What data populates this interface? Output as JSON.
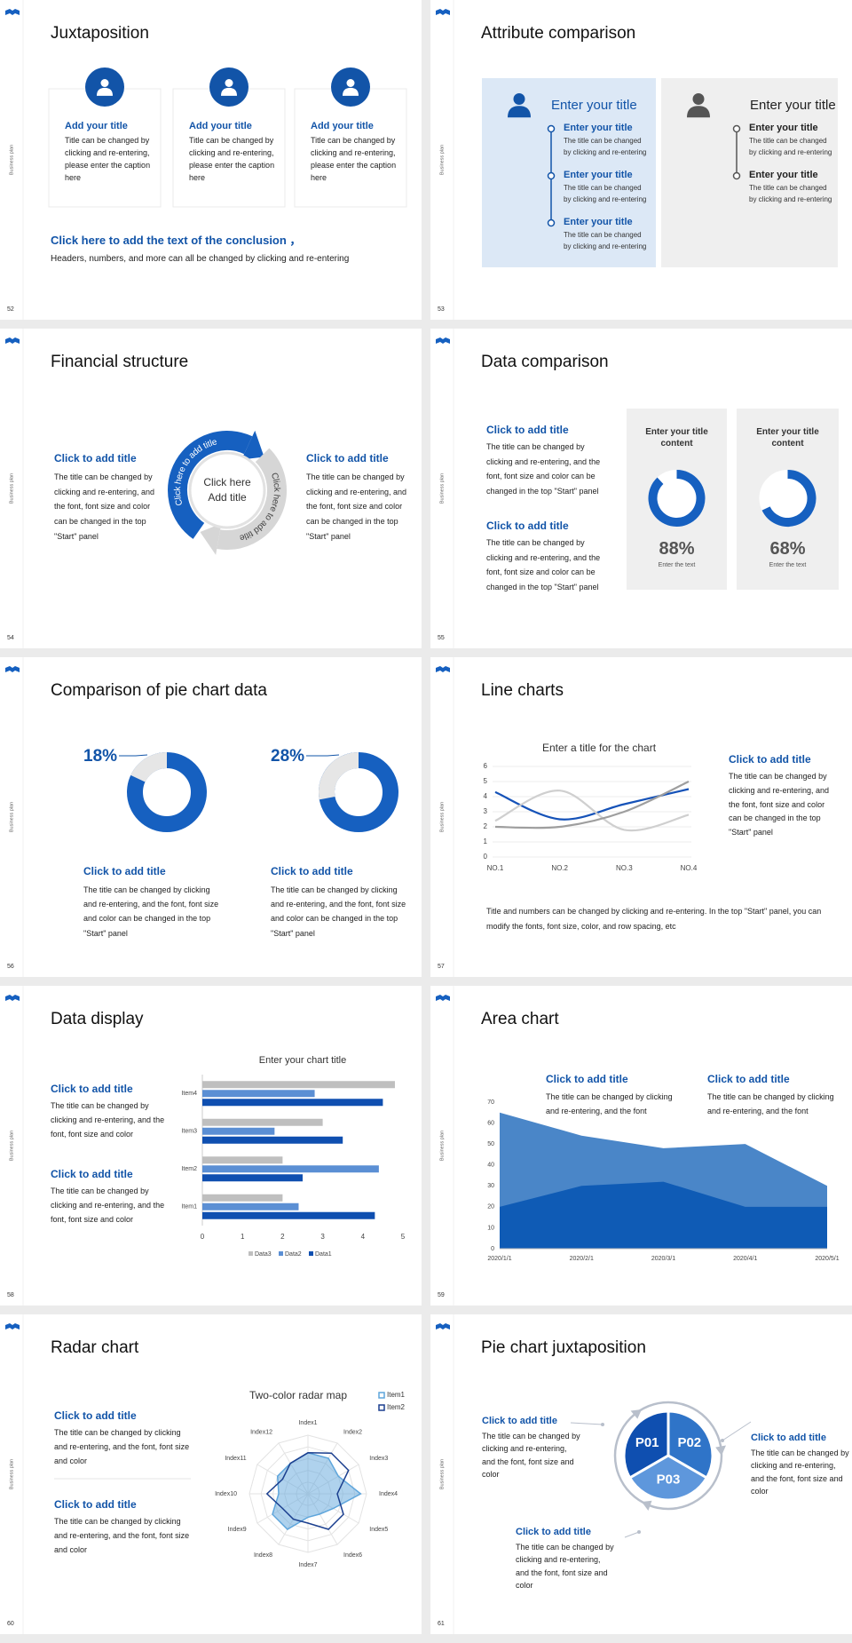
{
  "side_label": "Business plan",
  "slides": [
    {
      "number": "52",
      "title": "Juxtaposition",
      "cards": [
        {
          "title": "Add your title",
          "text": "Title can be changed by clicking and re-entering, please enter the caption here"
        },
        {
          "title": "Add your title",
          "text": "Title can be changed by clicking and re-entering, please enter the caption here"
        },
        {
          "title": "Add your title",
          "text": "Title can be changed by clicking and re-entering, please enter the caption here"
        }
      ],
      "conclusion": {
        "title": "Click here to add the text of the conclusion ，",
        "text": "Headers, numbers, and more can all be changed by clicking and re-entering"
      }
    },
    {
      "number": "53",
      "title": "Attribute comparison",
      "panels": [
        {
          "title": "Enter your title",
          "items": [
            {
              "title": "Enter your title",
              "text": "The title can be changed by clicking and re-entering"
            },
            {
              "title": "Enter your title",
              "text": "The title can be changed by clicking and re-entering"
            },
            {
              "title": "Enter your title",
              "text": "The title can be changed by clicking and re-entering"
            }
          ]
        },
        {
          "title": "Enter your title",
          "items": [
            {
              "title": "Enter your title",
              "text": "The title can be changed by clicking and re-entering"
            },
            {
              "title": "Enter your title",
              "text": "The title can be changed by clicking and re-entering"
            }
          ]
        }
      ]
    },
    {
      "number": "54",
      "title": "Financial structure",
      "blocks": [
        {
          "title": "Click to add title",
          "text": "The title can be changed by clicking and re-entering, and the font, font size and color can be changed in the top \"Start\" panel"
        },
        {
          "title": "Click to add title",
          "text": "The title can be changed by clicking and re-entering, and the font, font size and color can be changed in the top \"Start\" panel"
        }
      ],
      "center": "Click here Add title",
      "arc_labels": [
        "Click here to add title",
        "Click here to add title"
      ]
    },
    {
      "number": "55",
      "title": "Data comparison",
      "blocks": [
        {
          "title": "Click to add title",
          "text": "The title can be changed by clicking and re-entering, and the font, font size and color can be changed in the top \"Start\" panel"
        },
        {
          "title": "Click to add title",
          "text": "The title can be changed by clicking and re-entering, and the font, font size and color can be changed in the top \"Start\" panel"
        }
      ],
      "gauges": [
        {
          "title": "Enter your title content",
          "value": 88,
          "value_label": "88%",
          "caption": "Enter the text"
        },
        {
          "title": "Enter your title content",
          "value": 68,
          "value_label": "68%",
          "caption": "Enter the text"
        }
      ]
    },
    {
      "number": "56",
      "title": "Comparison of pie chart data",
      "donuts": [
        {
          "value": 18,
          "value_label": "18%",
          "title": "Click to add title",
          "text": "The title can be changed by clicking and re-entering, and the font, font size and color can be changed in the top \"Start\" panel"
        },
        {
          "value": 28,
          "value_label": "28%",
          "title": "Click to add title",
          "text": "The title can be changed by clicking and re-entering, and the font, font size and color can be changed in the top \"Start\" panel"
        }
      ]
    },
    {
      "number": "57",
      "title": "Line charts",
      "chart": {
        "type": "line",
        "title": "Enter a title for the chart",
        "categories": [
          "NO.1",
          "NO.2",
          "NO.3",
          "NO.4"
        ],
        "ylim": [
          0,
          6
        ],
        "yticks": [
          0,
          1,
          2,
          3,
          4,
          5,
          6
        ],
        "grid": true,
        "series": [
          {
            "color": "#1552b8",
            "values": [
              4.3,
              2.5,
              3.5,
              4.5
            ]
          },
          {
            "color": "#cfcfcf",
            "values": [
              2.4,
              4.4,
              1.8,
              2.8
            ]
          },
          {
            "color": "#9e9e9e",
            "values": [
              2,
              2,
              3,
              5
            ]
          }
        ]
      },
      "block": {
        "title": "Click to add title",
        "text": "The title can be changed by clicking and re-entering, and the font, font size and color can be changed in the top \"Start\" panel"
      },
      "note": "Title and numbers can be changed by clicking and re-entering. In the top \"Start\" panel, you can modify the fonts, font size, color, and row spacing, etc"
    },
    {
      "number": "58",
      "title": "Data display",
      "blocks": [
        {
          "title": "Click to add title",
          "text": "The title can be changed by clicking and re-entering, and the font, font size and color"
        },
        {
          "title": "Click to add title",
          "text": "The title can be changed by clicking and re-entering, and the font, font size and color"
        }
      ],
      "chart": {
        "type": "bar",
        "orientation": "horizontal",
        "title": "Enter your chart title",
        "categories": [
          "Item1",
          "Item2",
          "Item3",
          "Item4"
        ],
        "xlim": [
          0,
          5
        ],
        "xticks": [
          0,
          1,
          2,
          3,
          4,
          5
        ],
        "series": [
          {
            "name": "Data3",
            "color": "#bfbfbf",
            "values": [
              2,
              2,
              3,
              4.8
            ]
          },
          {
            "name": "Data2",
            "color": "#5b8fd4",
            "values": [
              2.4,
              4.4,
              1.8,
              2.8
            ]
          },
          {
            "name": "Data1",
            "color": "#0f4fb0",
            "values": [
              4.3,
              2.5,
              3.5,
              4.5
            ]
          }
        ]
      }
    },
    {
      "number": "59",
      "title": "Area chart",
      "blocks": [
        {
          "title": "Click to add title",
          "text": "The title can be changed by clicking and re-entering, and the font"
        },
        {
          "title": "Click to add title",
          "text": "The title can be changed by clicking and re-entering, and the font"
        }
      ],
      "chart": {
        "type": "area",
        "categories": [
          "2020/1/1",
          "2020/2/1",
          "2020/3/1",
          "2020/4/1",
          "2020/5/1"
        ],
        "ylim": [
          0,
          70
        ],
        "yticks": [
          0,
          10,
          20,
          30,
          40,
          50,
          60,
          70
        ],
        "series": [
          {
            "color": "#4a86c8",
            "values": [
              65,
              54,
              48,
              50,
              30
            ]
          },
          {
            "color": "#0f5bb5",
            "values": [
              20,
              30,
              32,
              20,
              20
            ]
          }
        ]
      }
    },
    {
      "number": "60",
      "title": "Radar chart",
      "blocks": [
        {
          "title": "Click to add title",
          "text": "The title can be changed by clicking and re-entering, and the font, font size and color"
        },
        {
          "title": "Click to add title",
          "text": "The title can be changed by clicking and re-entering, and the font, font size and color"
        }
      ],
      "chart": {
        "type": "radar",
        "title": "Two-color radar map",
        "categories": [
          "Index1",
          "Index2",
          "Index3",
          "Index4",
          "Index5",
          "Index6",
          "Index7",
          "Index8",
          "Index9",
          "Index10",
          "Index11",
          "Index12"
        ],
        "rlim": [
          0,
          5
        ],
        "series": [
          {
            "name": "Item1",
            "color": "#5fa6dc",
            "values": [
              3.5,
              3.5,
              3,
              4.5,
              2.5,
              2,
              2,
              3.5,
              3.5,
              2.5,
              3,
              3
            ]
          },
          {
            "name": "Item2",
            "color": "#1b3f8f",
            "values": [
              3.5,
              4,
              4,
              2.5,
              3.5,
              3.5,
              2.5,
              2.5,
              2.5,
              3.5,
              2.5,
              3
            ]
          }
        ]
      }
    },
    {
      "number": "61",
      "title": "Pie chart juxtaposition",
      "blocks": [
        {
          "title": "Click to add title",
          "text": "The title can be changed by clicking and re-entering, and the font, font size and color"
        },
        {
          "title": "Click to add title",
          "text": "The title can be changed by clicking and re-entering, and the font, font size and color"
        },
        {
          "title": "Click to add title",
          "text": "The title can be changed by clicking and re-entering, and the font, font size and color"
        }
      ],
      "segments": [
        "P01",
        "P02",
        "P03"
      ]
    }
  ]
}
